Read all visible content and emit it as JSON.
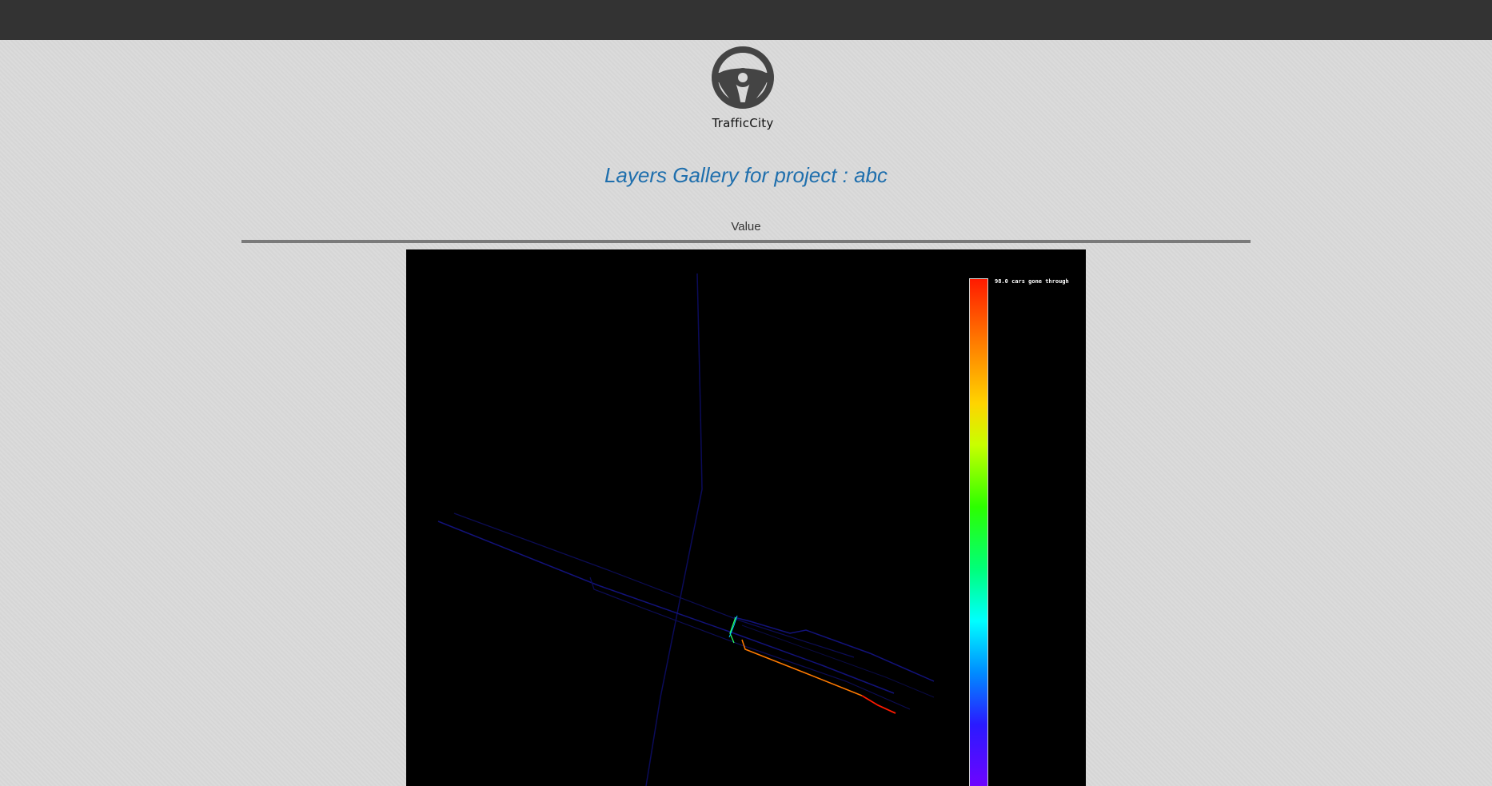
{
  "app": {
    "name": "TrafficCity",
    "logo_icon": "steering-wheel-icon"
  },
  "page": {
    "title": "Layers Gallery for project : abc"
  },
  "gallery": {
    "section_label": "Value",
    "layer": {
      "legend_label": "98.0 cars gone through",
      "colorbar_colors": [
        "#ff1a00",
        "#ff7a00",
        "#ffd400",
        "#2cff00",
        "#00ff7a",
        "#00ffff",
        "#008cff",
        "#2a1aff",
        "#7a00ff"
      ]
    }
  },
  "colors": {
    "topbar": "#333333",
    "title": "#1f6fad",
    "divider": "#7a7a7a",
    "map_background": "#000000"
  }
}
